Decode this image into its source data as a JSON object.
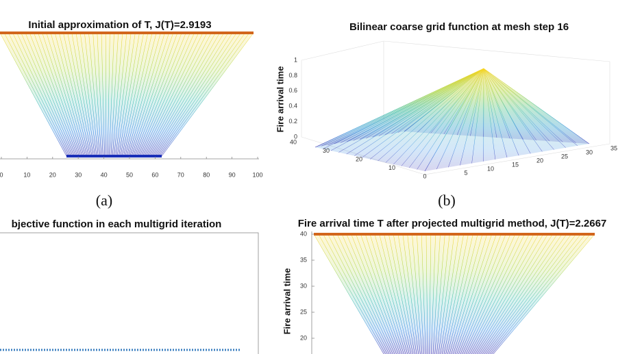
{
  "panels": [
    {
      "title": "Initial approximation of T, J(T)=2.9193",
      "xticks": [
        0,
        10,
        20,
        30,
        40,
        50,
        60,
        70,
        80,
        90,
        100
      ],
      "caption": "(a)"
    },
    {
      "title": "Bilinear coarse grid function at mesh step 16",
      "ylabel": "Fire arrival time",
      "zticks": [
        0,
        0.2,
        0.4,
        0.6,
        0.8,
        1
      ],
      "xticks": [
        5,
        10,
        15,
        20,
        25,
        30,
        35
      ],
      "yticks": [
        0,
        10,
        20,
        30,
        40
      ],
      "caption": "(b)"
    },
    {
      "title": "bjective function in each multigrid iteration"
    },
    {
      "title": "Fire arrival time T after projected multigrid method, J(T)=2.2667",
      "ylabel": "Fire arrival time",
      "yticks": [
        20,
        25,
        30,
        35,
        40
      ]
    }
  ]
}
